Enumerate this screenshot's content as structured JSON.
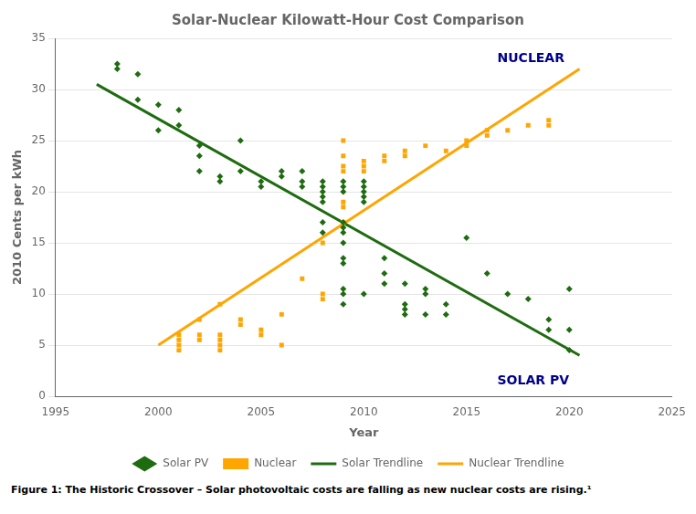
{
  "chart_data": {
    "type": "scatter",
    "title": "Solar-Nuclear Kilowatt-Hour Cost Comparison",
    "xlabel": "Year",
    "ylabel": "2010 Cents per kWh",
    "xlim": [
      1995,
      2025
    ],
    "ylim": [
      0,
      35
    ],
    "xticks": [
      1995,
      2000,
      2005,
      2010,
      2015,
      2020,
      2025
    ],
    "yticks": [
      0,
      5,
      10,
      15,
      20,
      25,
      30,
      35
    ],
    "grid": "y",
    "legend": "bottom",
    "series": [
      {
        "name": "Solar PV",
        "type": "scatter",
        "marker": "diamond",
        "color": "#1E6B10",
        "x": [
          1998,
          1998,
          1999,
          1999,
          2000,
          2000,
          2001,
          2001,
          2002,
          2002,
          2002,
          2003,
          2003,
          2004,
          2004,
          2005,
          2005,
          2006,
          2006,
          2007,
          2007,
          2007,
          2008,
          2008,
          2008,
          2008,
          2008,
          2008,
          2008,
          2009,
          2009,
          2009,
          2009,
          2009,
          2009,
          2009,
          2009,
          2009,
          2009,
          2009,
          2009,
          2010,
          2010,
          2010,
          2010,
          2010,
          2010,
          2011,
          2011,
          2011,
          2012,
          2012,
          2012,
          2012,
          2013,
          2013,
          2013,
          2014,
          2014,
          2015,
          2016,
          2017,
          2018,
          2019,
          2019,
          2020,
          2020,
          2020
        ],
        "values": [
          32.5,
          32.0,
          31.5,
          29.0,
          28.5,
          26.0,
          28.0,
          26.5,
          24.5,
          23.5,
          22.0,
          21.5,
          21.0,
          25.0,
          22.0,
          21.0,
          20.5,
          22.0,
          21.5,
          22.0,
          21.0,
          20.5,
          21.0,
          20.5,
          20.0,
          19.5,
          19.0,
          17.0,
          16.0,
          21.0,
          20.5,
          20.0,
          17.0,
          16.5,
          16.0,
          15.0,
          13.5,
          13.0,
          10.5,
          10.0,
          9.0,
          21.0,
          20.5,
          20.0,
          19.5,
          19.0,
          10.0,
          13.5,
          12.0,
          11.0,
          11.0,
          9.0,
          8.5,
          8.0,
          10.5,
          10.0,
          8.0,
          9.0,
          8.0,
          15.5,
          12.0,
          10.0,
          9.5,
          7.5,
          6.5,
          10.5,
          6.5,
          4.5
        ]
      },
      {
        "name": "Nuclear",
        "type": "scatter",
        "marker": "square",
        "color": "#FFA500",
        "x": [
          2001,
          2001,
          2001,
          2001,
          2002,
          2002,
          2002,
          2003,
          2003,
          2003,
          2003,
          2003,
          2004,
          2004,
          2005,
          2005,
          2006,
          2006,
          2007,
          2008,
          2008,
          2008,
          2009,
          2009,
          2009,
          2009,
          2009,
          2009,
          2009,
          2010,
          2010,
          2010,
          2011,
          2011,
          2012,
          2012,
          2013,
          2014,
          2015,
          2015,
          2016,
          2016,
          2017,
          2018,
          2019,
          2019
        ],
        "values": [
          6.0,
          5.5,
          5.0,
          4.5,
          7.5,
          6.0,
          5.5,
          9.0,
          6.0,
          5.5,
          5.0,
          4.5,
          7.5,
          7.0,
          6.5,
          6.0,
          8.0,
          5.0,
          11.5,
          15.0,
          10.0,
          9.5,
          25.0,
          23.5,
          22.5,
          22.0,
          19.0,
          18.5,
          17.0,
          23.0,
          22.5,
          22.0,
          23.5,
          23.0,
          24.0,
          23.5,
          24.5,
          24.0,
          25.0,
          24.5,
          25.5,
          26.0,
          26.0,
          26.5,
          27.0,
          26.5
        ]
      },
      {
        "name": "Solar Trendline",
        "type": "line",
        "line_style": "solid",
        "color": "#1E6B10",
        "x": [
          1997,
          2020.5
        ],
        "values": [
          30.5,
          4.0
        ]
      },
      {
        "name": "Nuclear Trendline",
        "type": "line",
        "line_style": "solid",
        "color": "#FFA500",
        "x": [
          2000,
          2020.5
        ],
        "values": [
          5.0,
          32.0
        ]
      }
    ],
    "annotations": [
      {
        "text": "NUCLEAR",
        "x": 2016.5,
        "y": 33.0,
        "color": "#00008B"
      },
      {
        "text": "SOLAR PV",
        "x": 2016.5,
        "y": 1.5,
        "color": "#00008B"
      }
    ],
    "caption": "Figure 1: The Historic Crossover – Solar photovoltaic costs are falling as new nuclear costs are rising.¹"
  }
}
